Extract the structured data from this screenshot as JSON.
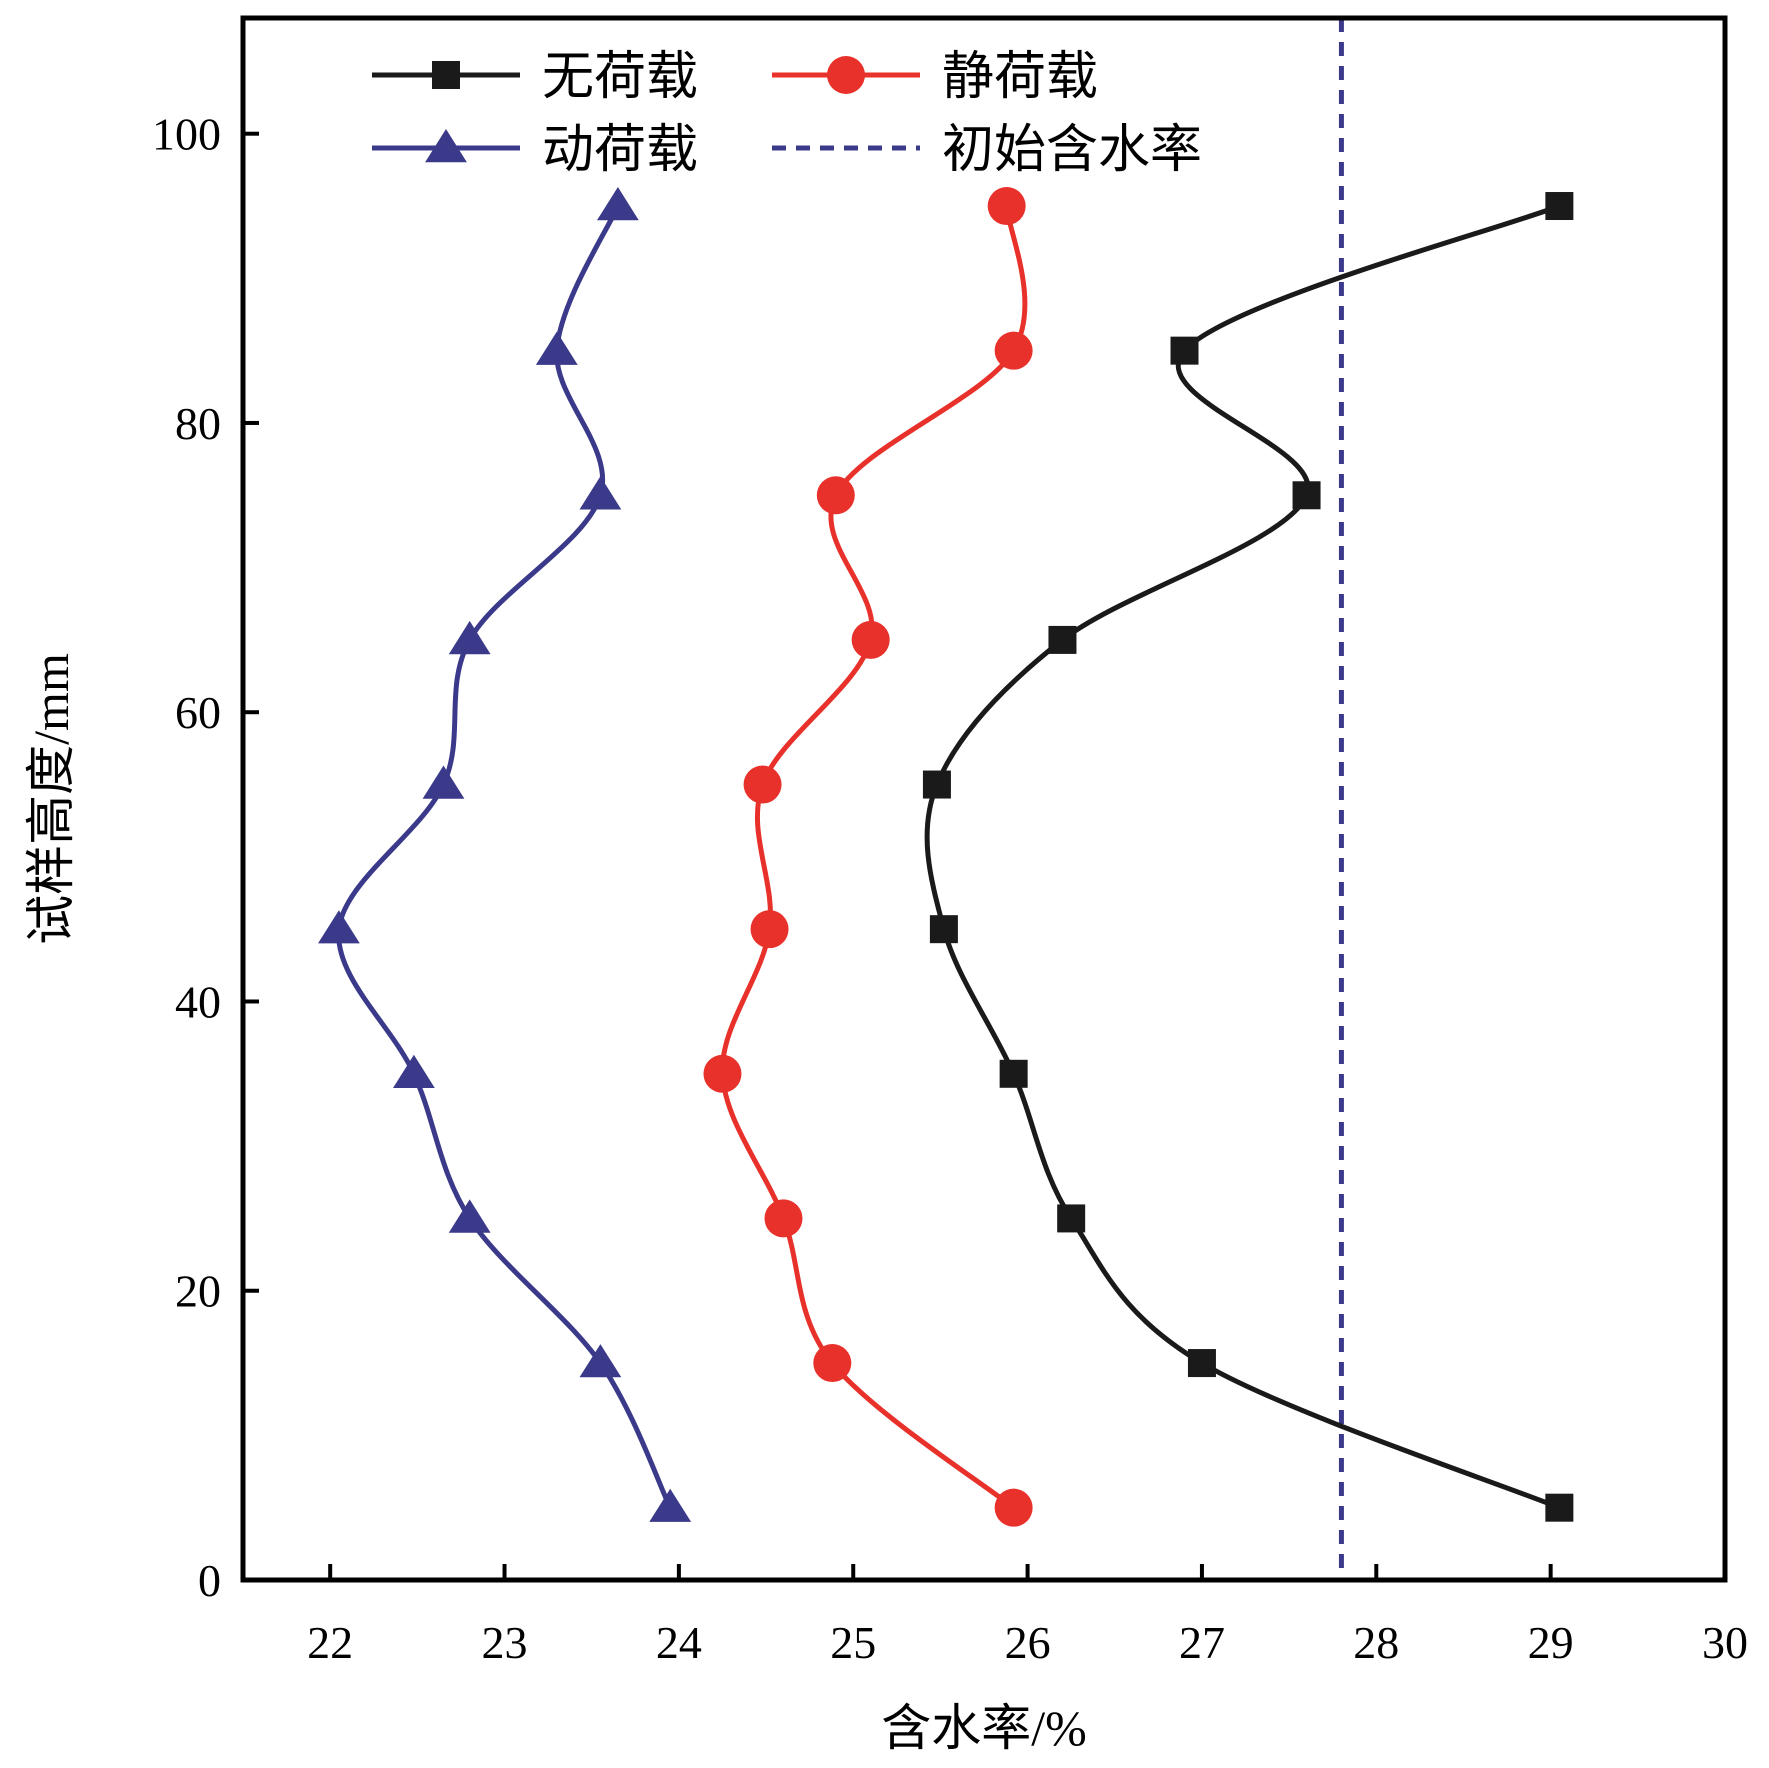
{
  "chart_data": {
    "type": "line",
    "xlabel": "含水率/%",
    "ylabel": "试样高度/mm",
    "xlim": [
      21.5,
      30
    ],
    "ylim": [
      0,
      108
    ],
    "x_ticks": [
      22,
      23,
      24,
      25,
      26,
      27,
      28,
      29,
      30
    ],
    "y_ticks": [
      0,
      20,
      40,
      60,
      80,
      100
    ],
    "grid": false,
    "legend_position": "top",
    "series": [
      {
        "name": "无荷载",
        "color": "#1a1a1a",
        "marker": "square",
        "points": [
          {
            "x": 29.05,
            "y": 5
          },
          {
            "x": 27.0,
            "y": 15
          },
          {
            "x": 26.25,
            "y": 25
          },
          {
            "x": 25.92,
            "y": 35
          },
          {
            "x": 25.52,
            "y": 45
          },
          {
            "x": 25.48,
            "y": 55
          },
          {
            "x": 26.2,
            "y": 65
          },
          {
            "x": 27.6,
            "y": 75
          },
          {
            "x": 26.9,
            "y": 85
          },
          {
            "x": 29.05,
            "y": 95
          }
        ]
      },
      {
        "name": "静荷载",
        "color": "#e8312a",
        "marker": "circle",
        "points": [
          {
            "x": 25.92,
            "y": 5
          },
          {
            "x": 24.88,
            "y": 15
          },
          {
            "x": 24.6,
            "y": 25
          },
          {
            "x": 24.25,
            "y": 35
          },
          {
            "x": 24.52,
            "y": 45
          },
          {
            "x": 24.48,
            "y": 55
          },
          {
            "x": 25.1,
            "y": 65
          },
          {
            "x": 24.9,
            "y": 75
          },
          {
            "x": 25.92,
            "y": 85
          },
          {
            "x": 25.88,
            "y": 95
          }
        ]
      },
      {
        "name": "动荷载",
        "color": "#3b3a8a",
        "marker": "triangle",
        "points": [
          {
            "x": 23.95,
            "y": 5
          },
          {
            "x": 23.55,
            "y": 15
          },
          {
            "x": 22.8,
            "y": 25
          },
          {
            "x": 22.48,
            "y": 35
          },
          {
            "x": 22.05,
            "y": 45
          },
          {
            "x": 22.65,
            "y": 55
          },
          {
            "x": 22.8,
            "y": 65
          },
          {
            "x": 23.55,
            "y": 75
          },
          {
            "x": 23.3,
            "y": 85
          },
          {
            "x": 23.65,
            "y": 95
          }
        ]
      }
    ],
    "reference_line": {
      "name": "初始含水率",
      "orientation": "vertical",
      "x": 27.8,
      "color": "#3b3a8a",
      "style": "dashed"
    }
  }
}
